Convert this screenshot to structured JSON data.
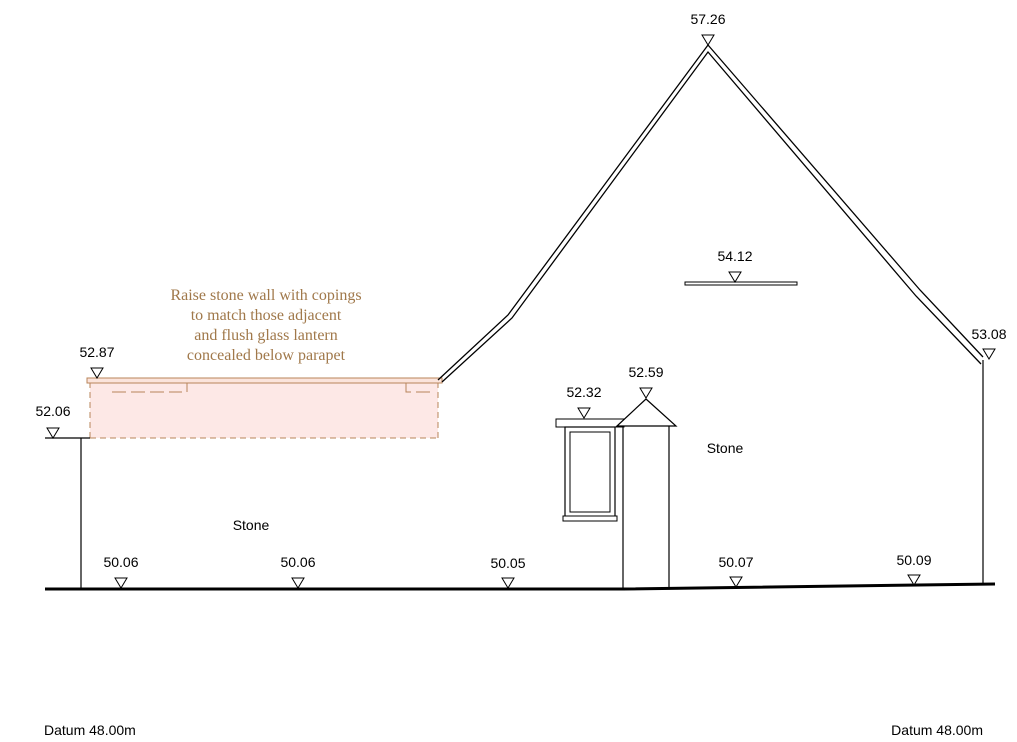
{
  "levels": {
    "ridge": "57.26",
    "internal_line": "54.12",
    "right_eaves": "53.08",
    "parapet_top": "52.87",
    "existing_wall": "52.06",
    "porch_apex": "52.59",
    "window_head": "52.32",
    "ground_1": "50.06",
    "ground_2": "50.06",
    "ground_3": "50.05",
    "ground_4": "50.07",
    "ground_5": "50.09"
  },
  "materials": {
    "left": "Stone",
    "right": "Stone"
  },
  "annotation": {
    "line1": "Raise stone wall with copings",
    "line2": "to match those adjacent",
    "line3": "and flush glass lantern",
    "line4": "concealed below parapet",
    "color": "#a0784a"
  },
  "datum": {
    "left": "Datum 48.00m",
    "right": "Datum 48.00m"
  },
  "colors": {
    "proposed_fill": "#fde8e6",
    "proposed_outline": "#b8845a"
  }
}
